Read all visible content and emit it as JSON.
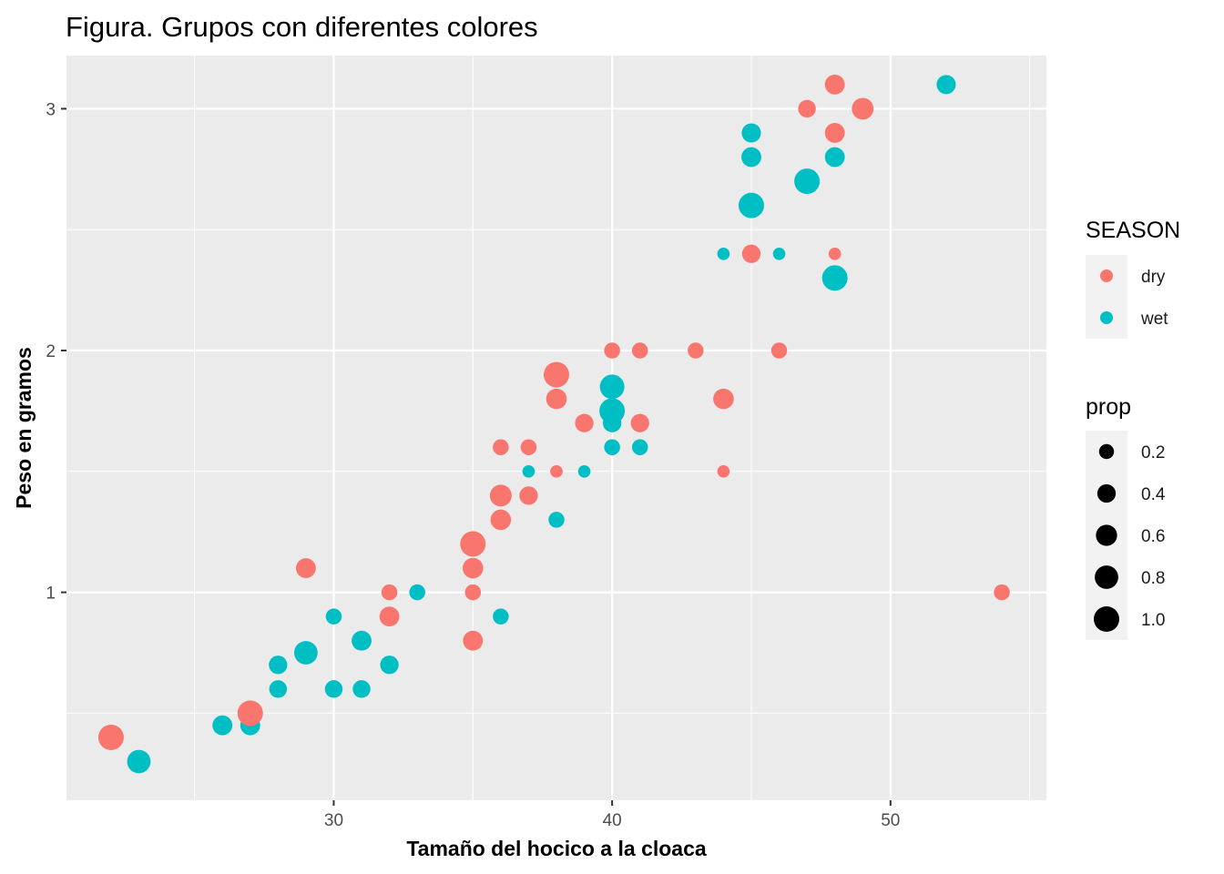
{
  "chart_data": {
    "type": "scatter",
    "title": "Figura. Grupos con diferentes colores",
    "xlabel": "Tamaño del hocico a la cloaca",
    "ylabel": "Peso en gramos",
    "xlim": [
      20.4,
      55.6
    ],
    "ylim": [
      0.14,
      3.22
    ],
    "x_ticks": [
      30,
      40,
      50
    ],
    "y_ticks": [
      1,
      2,
      3
    ],
    "x_tick_labels": [
      "30",
      "40",
      "50"
    ],
    "y_tick_labels": [
      "1",
      "2",
      "3"
    ],
    "grid": true,
    "legend_placement": "right",
    "colors": {
      "background": "#EBEBEB",
      "grid": "#FFFFFF",
      "dry": "#F8766D",
      "wet": "#00BFC4"
    },
    "color_legend": {
      "title": "SEASON",
      "items": [
        {
          "label": "dry",
          "color": "#F8766D"
        },
        {
          "label": "wet",
          "color": "#00BFC4"
        }
      ]
    },
    "size_legend": {
      "title": "prop",
      "values": [
        0.2,
        0.4,
        0.6,
        0.8,
        1.0
      ],
      "labels": [
        "0.2",
        "0.4",
        "0.6",
        "0.8",
        "1.0"
      ]
    },
    "series": [
      {
        "name": "wet",
        "color": "#00BFC4",
        "points": [
          {
            "x": 23,
            "y": 0.3,
            "prop": 0.8
          },
          {
            "x": 26,
            "y": 0.45,
            "prop": 0.5
          },
          {
            "x": 27,
            "y": 0.45,
            "prop": 0.5
          },
          {
            "x": 28,
            "y": 0.6,
            "prop": 0.35
          },
          {
            "x": 28,
            "y": 0.7,
            "prop": 0.4
          },
          {
            "x": 29,
            "y": 0.75,
            "prop": 0.8
          },
          {
            "x": 30,
            "y": 0.6,
            "prop": 0.35
          },
          {
            "x": 30,
            "y": 0.9,
            "prop": 0.25
          },
          {
            "x": 31,
            "y": 0.6,
            "prop": 0.35
          },
          {
            "x": 31,
            "y": 0.8,
            "prop": 0.5
          },
          {
            "x": 32,
            "y": 0.7,
            "prop": 0.4
          },
          {
            "x": 33,
            "y": 1.0,
            "prop": 0.25
          },
          {
            "x": 36,
            "y": 0.9,
            "prop": 0.25
          },
          {
            "x": 36,
            "y": 1.3,
            "prop": 0.25
          },
          {
            "x": 37,
            "y": 1.5,
            "prop": 0.1
          },
          {
            "x": 38,
            "y": 1.3,
            "prop": 0.25
          },
          {
            "x": 39,
            "y": 1.5,
            "prop": 0.1
          },
          {
            "x": 40,
            "y": 1.6,
            "prop": 0.25
          },
          {
            "x": 40,
            "y": 1.7,
            "prop": 0.4
          },
          {
            "x": 40,
            "y": 1.75,
            "prop": 1.0
          },
          {
            "x": 40,
            "y": 1.85,
            "prop": 0.9
          },
          {
            "x": 41,
            "y": 1.6,
            "prop": 0.25
          },
          {
            "x": 44,
            "y": 2.4,
            "prop": 0.1
          },
          {
            "x": 45,
            "y": 2.6,
            "prop": 1.0
          },
          {
            "x": 45,
            "y": 2.8,
            "prop": 0.5
          },
          {
            "x": 45,
            "y": 2.9,
            "prop": 0.45
          },
          {
            "x": 46,
            "y": 2.4,
            "prop": 0.1
          },
          {
            "x": 47,
            "y": 2.7,
            "prop": 1.0
          },
          {
            "x": 48,
            "y": 2.3,
            "prop": 1.0
          },
          {
            "x": 48,
            "y": 2.8,
            "prop": 0.5
          },
          {
            "x": 52,
            "y": 3.1,
            "prop": 0.45
          }
        ]
      },
      {
        "name": "dry",
        "color": "#F8766D",
        "points": [
          {
            "x": 22,
            "y": 0.4,
            "prop": 1.0
          },
          {
            "x": 27,
            "y": 0.5,
            "prop": 1.0
          },
          {
            "x": 29,
            "y": 1.1,
            "prop": 0.5
          },
          {
            "x": 32,
            "y": 0.9,
            "prop": 0.5
          },
          {
            "x": 32,
            "y": 1.0,
            "prop": 0.25
          },
          {
            "x": 35,
            "y": 0.8,
            "prop": 0.5
          },
          {
            "x": 35,
            "y": 1.0,
            "prop": 0.25
          },
          {
            "x": 35,
            "y": 1.1,
            "prop": 0.55
          },
          {
            "x": 35,
            "y": 1.2,
            "prop": 1.0
          },
          {
            "x": 36,
            "y": 1.3,
            "prop": 0.55
          },
          {
            "x": 36,
            "y": 1.4,
            "prop": 0.65
          },
          {
            "x": 36,
            "y": 1.6,
            "prop": 0.25
          },
          {
            "x": 37,
            "y": 1.4,
            "prop": 0.4
          },
          {
            "x": 37,
            "y": 1.6,
            "prop": 0.25
          },
          {
            "x": 38,
            "y": 1.5,
            "prop": 0.1
          },
          {
            "x": 38,
            "y": 1.8,
            "prop": 0.55
          },
          {
            "x": 38,
            "y": 1.9,
            "prop": 1.0
          },
          {
            "x": 39,
            "y": 1.7,
            "prop": 0.4
          },
          {
            "x": 40,
            "y": 2.0,
            "prop": 0.25
          },
          {
            "x": 41,
            "y": 1.7,
            "prop": 0.4
          },
          {
            "x": 41,
            "y": 2.0,
            "prop": 0.25
          },
          {
            "x": 43,
            "y": 2.0,
            "prop": 0.25
          },
          {
            "x": 44,
            "y": 1.5,
            "prop": 0.1
          },
          {
            "x": 44,
            "y": 1.8,
            "prop": 0.55
          },
          {
            "x": 45,
            "y": 2.4,
            "prop": 0.4
          },
          {
            "x": 46,
            "y": 2.0,
            "prop": 0.25
          },
          {
            "x": 47,
            "y": 3.0,
            "prop": 0.35
          },
          {
            "x": 48,
            "y": 2.4,
            "prop": 0.1
          },
          {
            "x": 48,
            "y": 2.9,
            "prop": 0.5
          },
          {
            "x": 48,
            "y": 3.1,
            "prop": 0.5
          },
          {
            "x": 49,
            "y": 3.0,
            "prop": 0.65
          },
          {
            "x": 54,
            "y": 1.0,
            "prop": 0.25
          }
        ]
      }
    ]
  }
}
